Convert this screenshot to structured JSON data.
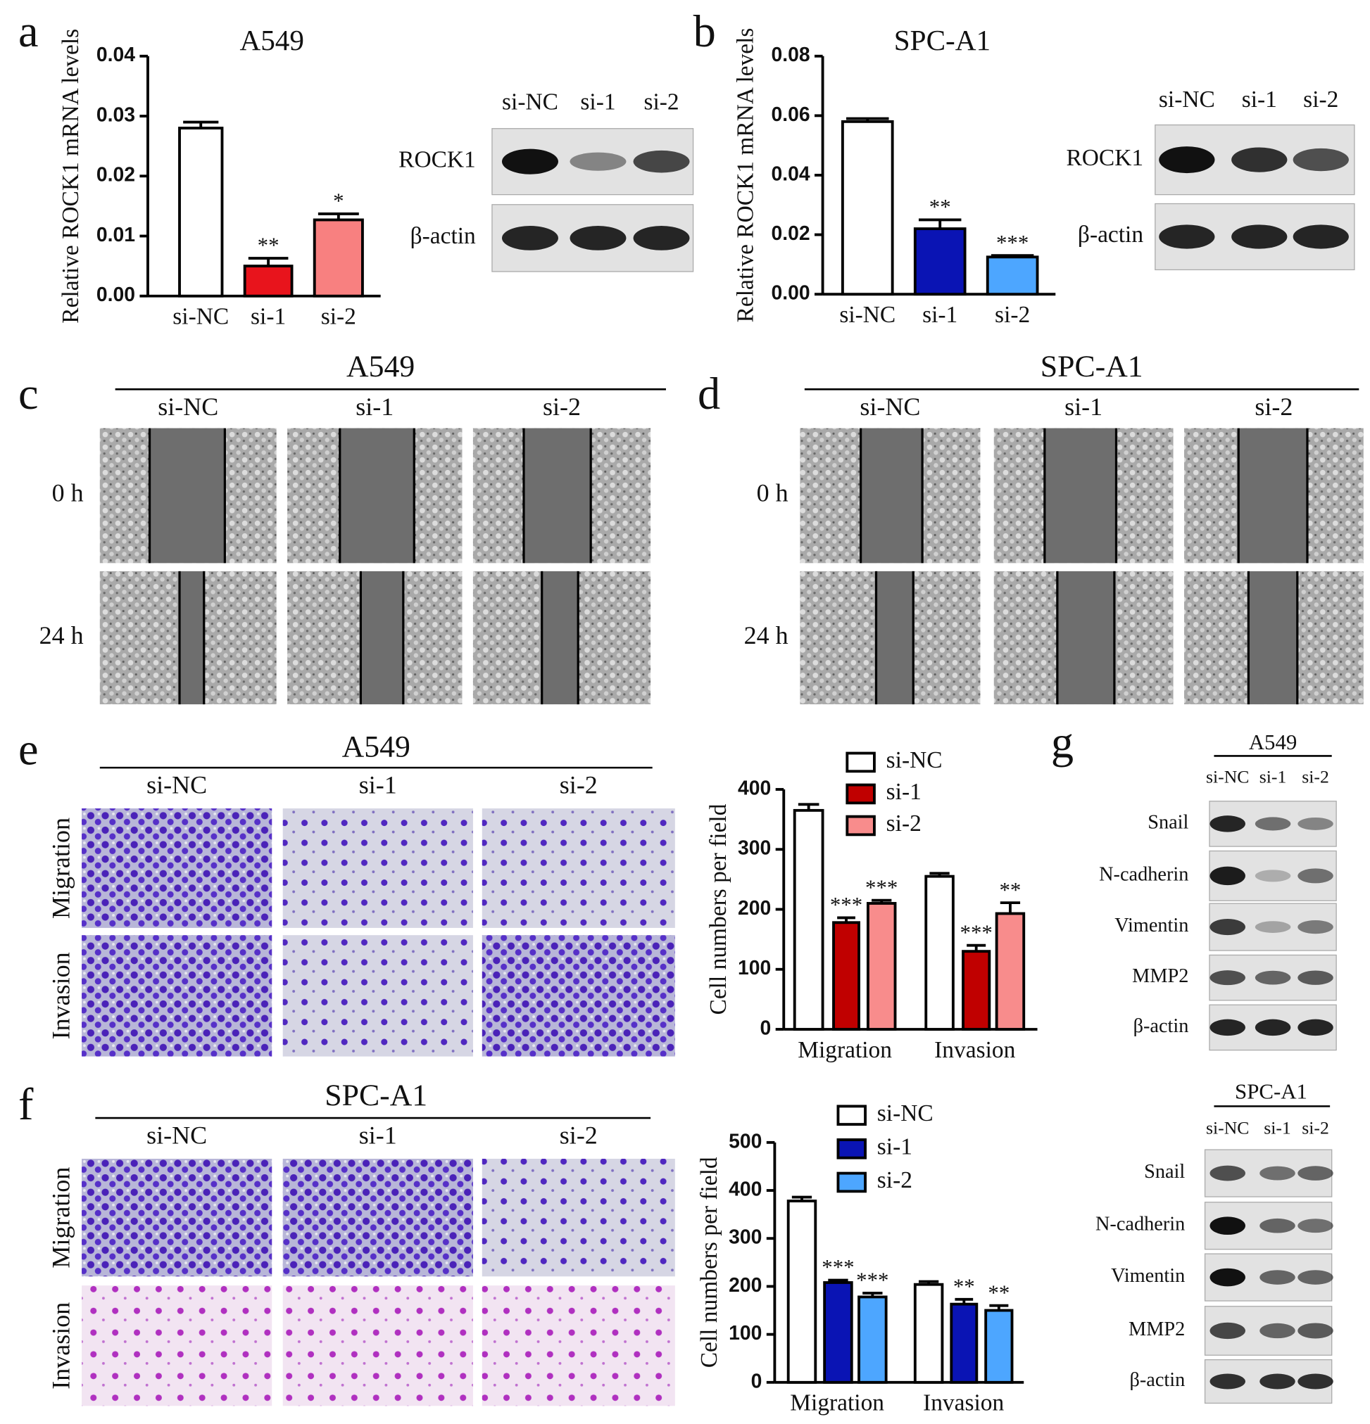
{
  "panel_labels": [
    "a",
    "b",
    "c",
    "d",
    "e",
    "f",
    "g"
  ],
  "chart_data": [
    {
      "type": "bar",
      "title": "A549",
      "ylabel": "Relative ROCK1 mRNA levels",
      "categories": [
        "si-NC",
        "si-1",
        "si-2"
      ],
      "values": [
        0.028,
        0.005,
        0.0127
      ],
      "errors": [
        0.001,
        0.0013,
        0.001
      ],
      "significance": [
        null,
        "**",
        "*"
      ],
      "colors": [
        "#ffffff",
        "#e8141c",
        "#f88080"
      ],
      "ylim": [
        0,
        0.04
      ],
      "yticks": [
        {
          "value": 0,
          "label": "0.00"
        },
        {
          "value": 0.01,
          "label": "0.01"
        },
        {
          "value": 0.02,
          "label": "0.02"
        },
        {
          "value": 0.03,
          "label": "0.03"
        },
        {
          "value": 0.04,
          "label": "0.04"
        }
      ]
    },
    {
      "type": "bar",
      "title": "SPC-A1",
      "ylabel": "Relative ROCK1 mRNA levels",
      "categories": [
        "si-NC",
        "si-1",
        "si-2"
      ],
      "values": [
        0.058,
        0.022,
        0.0125
      ],
      "errors": [
        0.001,
        0.003,
        0.0005
      ],
      "significance": [
        null,
        "**",
        "***"
      ],
      "colors": [
        "#ffffff",
        "#0a14b4",
        "#4da6ff"
      ],
      "ylim": [
        0,
        0.08
      ],
      "yticks": [
        {
          "value": 0,
          "label": "0.00"
        },
        {
          "value": 0.02,
          "label": "0.02"
        },
        {
          "value": 0.04,
          "label": "0.04"
        },
        {
          "value": 0.06,
          "label": "0.06"
        },
        {
          "value": 0.08,
          "label": "0.08"
        }
      ]
    },
    {
      "type": "bar",
      "ylabel": "Cell numbers per field",
      "categories": [
        "Migration",
        "Invasion"
      ],
      "series": [
        {
          "name": "si-NC",
          "color": "#ffffff",
          "values": [
            365,
            255
          ],
          "errors": [
            10,
            5
          ],
          "significance": [
            null,
            null
          ]
        },
        {
          "name": "si-1",
          "color": "#c00000",
          "values": [
            178,
            130
          ],
          "errors": [
            8,
            10
          ],
          "significance": [
            "***",
            "***"
          ]
        },
        {
          "name": "si-2",
          "color": "#f88c8c",
          "values": [
            210,
            193
          ],
          "errors": [
            5,
            18
          ],
          "significance": [
            "***",
            "**"
          ]
        }
      ],
      "ylim": [
        0,
        400
      ],
      "yticks": [
        0,
        100,
        200,
        300,
        400
      ],
      "legend": "top-right"
    },
    {
      "type": "bar",
      "ylabel": "Cell numbers per field",
      "categories": [
        "Migration",
        "Invasion"
      ],
      "series": [
        {
          "name": "si-NC",
          "color": "#ffffff",
          "values": [
            378,
            204
          ],
          "errors": [
            8,
            6
          ],
          "significance": [
            null,
            null
          ]
        },
        {
          "name": "si-1",
          "color": "#0a14b4",
          "values": [
            208,
            163
          ],
          "errors": [
            5,
            10
          ],
          "significance": [
            "***",
            "**"
          ]
        },
        {
          "name": "si-2",
          "color": "#4da6ff",
          "values": [
            178,
            150
          ],
          "errors": [
            8,
            10
          ],
          "significance": [
            "***",
            "**"
          ]
        }
      ],
      "ylim": [
        0,
        500
      ],
      "yticks": [
        0,
        100,
        200,
        300,
        400,
        500
      ],
      "legend": "top-right"
    }
  ],
  "blots": [
    {
      "columns": [
        "si-NC",
        "si-1",
        "si-2"
      ],
      "rows": [
        "ROCK1",
        "β-actin"
      ]
    },
    {
      "columns": [
        "si-NC",
        "si-1",
        "si-2"
      ],
      "rows": [
        "ROCK1",
        "β-actin"
      ]
    },
    {
      "title": "A549",
      "columns": [
        "si-NC",
        "si-1",
        "si-2"
      ],
      "rows": [
        "Snail",
        "N-cadherin",
        "Vimentin",
        "MMP2",
        "β-actin"
      ]
    },
    {
      "title": "SPC-A1",
      "columns": [
        "si-NC",
        "si-1",
        "si-2"
      ],
      "rows": [
        "Snail",
        "N-cadherin",
        "Vimentin",
        "MMP2",
        "β-actin"
      ]
    }
  ],
  "wound_assays": [
    {
      "title": "A549",
      "columns": [
        "si-NC",
        "si-1",
        "si-2"
      ],
      "rows": [
        "0 h",
        "24 h"
      ]
    },
    {
      "title": "SPC-A1",
      "columns": [
        "si-NC",
        "si-1",
        "si-2"
      ],
      "rows": [
        "0 h",
        "24 h"
      ]
    }
  ],
  "transwell_assays": [
    {
      "title": "A549",
      "columns": [
        "si-NC",
        "si-1",
        "si-2"
      ],
      "rows": [
        "Migration",
        "Invasion"
      ]
    },
    {
      "title": "SPC-A1",
      "columns": [
        "si-NC",
        "si-1",
        "si-2"
      ],
      "rows": [
        "Migration",
        "Invasion"
      ]
    }
  ]
}
